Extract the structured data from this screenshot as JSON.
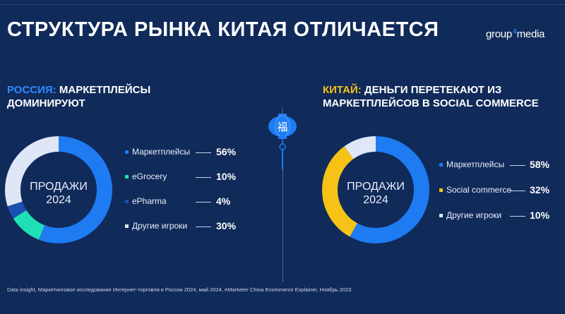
{
  "title": "СТРУКТУРА РЫНКА КИТАЯ ОТЛИЧАЕТСЯ",
  "brand": {
    "main": "group",
    "num": "4",
    "rest": "media"
  },
  "left_heading": {
    "accent": "РОССИЯ:",
    "rest": " МАРКЕТПЛЕЙСЫ\nДОМИНИРУЮТ"
  },
  "right_heading": {
    "accent": "КИТАЙ:",
    "rest": " ДЕНЬГИ ПЕРЕТЕКАЮТ ИЗ\nМАРКЕТПЛЕЙСОВ В SOCIAL COMMERCE"
  },
  "lantern_char": "福",
  "footer": "Data insight, Маркетинговое исследование Интернет-торговля в России 2024, май 2024, eMarketer China Ecommerce Explainer, Ноябрь 2023",
  "chart_data": [
    {
      "type": "pie",
      "center_label": "ПРОДАЖИ\n2024",
      "categories": [
        "Маркетплейсы",
        "eGrocery",
        "ePharma",
        "Другие игроки"
      ],
      "values": [
        56,
        10,
        4,
        30
      ],
      "value_labels": [
        "56%",
        "10%",
        "4%",
        "30%"
      ],
      "colors": [
        "#1e7bf2",
        "#1fe0b4",
        "#1c4fb0",
        "#dfe6f6"
      ]
    },
    {
      "type": "pie",
      "center_label": "ПРОДАЖИ\n2024",
      "categories": [
        "Маркетплейсы",
        "Social commerce",
        "Другие игроки"
      ],
      "values": [
        58,
        32,
        10
      ],
      "value_labels": [
        "58%",
        "32%",
        "10%"
      ],
      "colors": [
        "#1e7bf2",
        "#f5c215",
        "#dfe6f6"
      ]
    }
  ]
}
